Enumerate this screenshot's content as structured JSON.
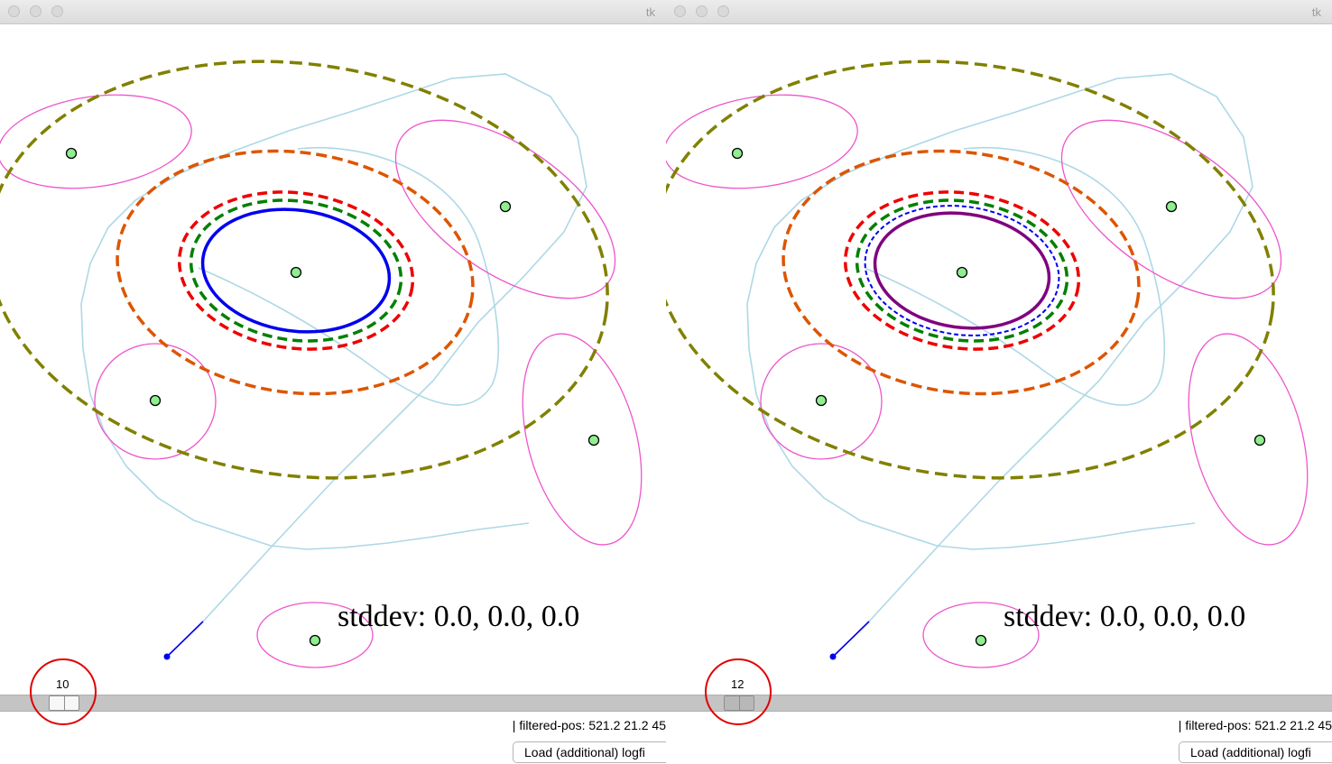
{
  "windows": [
    {
      "title": "tk",
      "stddev_text": "stddev: 0.0, 0.0, 0.0",
      "frame_value": "10",
      "status_text": "| filtered-pos: 521.2 21.2 45",
      "load_button_label": "Load (additional) logfi",
      "inner_ellipse_color": "#0000ee",
      "dashed_inner_blue": false
    },
    {
      "title": "tk",
      "stddev_text": "stddev: 0.0, 0.0, 0.0",
      "frame_value": "12",
      "status_text": "| filtered-pos: 521.2 21.2 45",
      "load_button_label": "Load (additional) logfi",
      "inner_ellipse_color": "#800080",
      "dashed_inner_blue": true
    }
  ],
  "colors": {
    "trajectory": "#add8e6",
    "landmark_fill": "#90ee90",
    "landmark_ellipse": "#ee55cc",
    "outer_dashed": "#808000",
    "orange_dashed": "#dd5500",
    "red_dashed": "#ee0000",
    "green_dashed": "#008000",
    "highlight": "#e00000",
    "robot_heading": "#0000ee"
  }
}
